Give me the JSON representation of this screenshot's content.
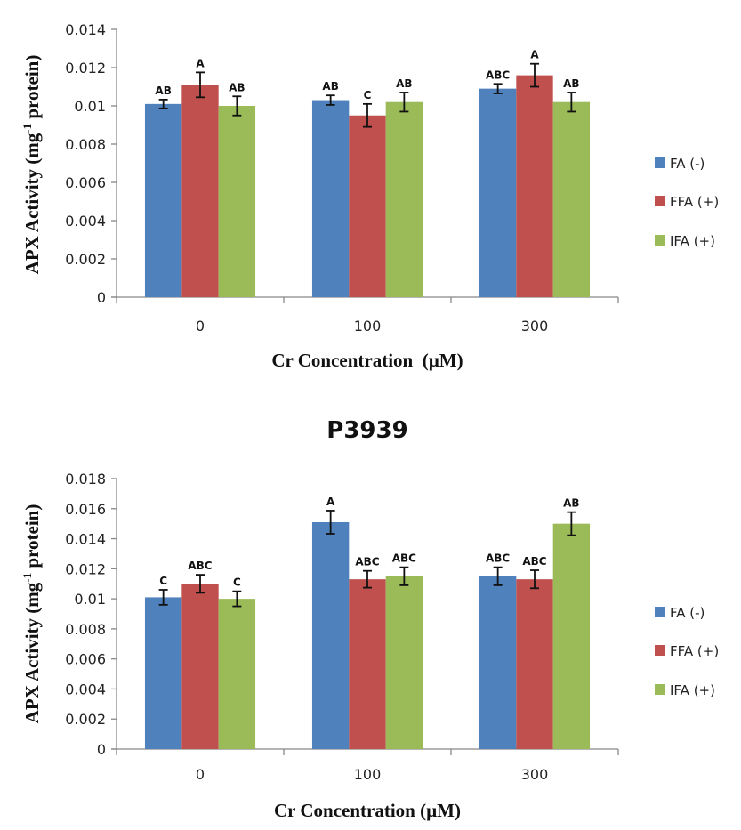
{
  "chart_data": [
    {
      "type": "bar",
      "title": "",
      "xlabel": "Cr Concentration  (µM)",
      "ylabel_main": "APX Activity (mg",
      "ylabel_sup": "-1",
      "ylabel_tail": " protein)",
      "ylim": [
        0,
        0.014
      ],
      "yticks": [
        0,
        0.002,
        0.004,
        0.006,
        0.008,
        0.01,
        0.012,
        0.014
      ],
      "ytick_labels": [
        "0",
        "0.002",
        "0.004",
        "0.006",
        "0.008",
        "0.01",
        "0.012",
        "0.014"
      ],
      "categories": [
        "0",
        "100",
        "300"
      ],
      "grid": false,
      "legend_position": "right",
      "series": [
        {
          "name": "FA (-)",
          "color": "#4F81BD",
          "values": [
            0.0101,
            0.0103,
            0.0109
          ],
          "errors": [
            0.00023,
            0.00025,
            0.00025
          ],
          "labels": [
            "AB",
            "AB",
            "ABC"
          ]
        },
        {
          "name": "FFA (+)",
          "color": "#C0504D",
          "values": [
            0.0111,
            0.0095,
            0.0116
          ],
          "errors": [
            0.00065,
            0.0006,
            0.0006
          ],
          "labels": [
            "A",
            "C",
            "A"
          ]
        },
        {
          "name": "IFA (+)",
          "color": "#9BBB59",
          "values": [
            0.01,
            0.0102,
            0.0102
          ],
          "errors": [
            0.0005,
            0.0005,
            0.0005
          ],
          "labels": [
            "AB",
            "AB",
            "AB"
          ]
        }
      ]
    },
    {
      "type": "bar",
      "title": "P3939",
      "xlabel": "Cr Concentration (µM)",
      "ylabel_main": "APX Activity (mg",
      "ylabel_sup": "-1",
      "ylabel_tail": " protein)",
      "ylim": [
        0,
        0.018
      ],
      "yticks": [
        0,
        0.002,
        0.004,
        0.006,
        0.008,
        0.01,
        0.012,
        0.014,
        0.016,
        0.018
      ],
      "ytick_labels": [
        "0",
        "0.002",
        "0.004",
        "0.006",
        "0.008",
        "0.01",
        "0.012",
        "0.014",
        "0.016",
        "0.018"
      ],
      "categories": [
        "0",
        "100",
        "300"
      ],
      "grid": false,
      "legend_position": "right",
      "series": [
        {
          "name": "FA (-)",
          "color": "#4F81BD",
          "values": [
            0.0101,
            0.0151,
            0.0115
          ],
          "errors": [
            0.0005,
            0.00077,
            0.0006
          ],
          "labels": [
            "C",
            "A",
            "ABC"
          ]
        },
        {
          "name": "FFA (+)",
          "color": "#C0504D",
          "values": [
            0.011,
            0.0113,
            0.0113
          ],
          "errors": [
            0.0006,
            0.00056,
            0.0006
          ],
          "labels": [
            "ABC",
            "ABC",
            "ABC"
          ]
        },
        {
          "name": "IFA (+)",
          "color": "#9BBB59",
          "values": [
            0.01,
            0.0115,
            0.015
          ],
          "errors": [
            0.0005,
            0.0006,
            0.00077
          ],
          "labels": [
            "C",
            "ABC",
            "AB"
          ]
        }
      ]
    }
  ]
}
